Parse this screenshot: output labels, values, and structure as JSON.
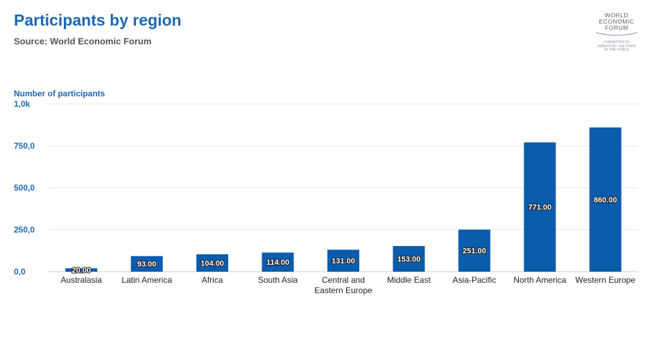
{
  "header": {
    "title": "Participants by region",
    "subtitle": "Source: World Economic Forum"
  },
  "logo": {
    "main_text": "WORLD\nECONOMIC\nFORUM",
    "tagline": "COMMITTED TO\nIMPROVING THE STATE\nOF THE WORLD"
  },
  "colors": {
    "bar": "#0a5cad",
    "title": "#1b67b3",
    "axis_text": "#1b67b3",
    "grid": "#e6e6e6"
  },
  "chart_data": {
    "type": "bar",
    "title": "Participants by region",
    "subtitle": "Source: World Economic Forum",
    "ylabel": "Number of participants",
    "xlabel": "",
    "ylim": [
      0,
      1000
    ],
    "yticks": [
      0,
      250,
      500,
      750,
      1000
    ],
    "ytick_labels": [
      "0,0",
      "250,0",
      "500,0",
      "750,0",
      "1,0k"
    ],
    "grid": true,
    "categories": [
      "Australasia",
      "Latin America",
      "Africa",
      "South Asia",
      "Central and Eastern Europe",
      "Middle East",
      "Asia-Pacific",
      "North America",
      "Western Europe"
    ],
    "category_label_lines": [
      [
        "Australasia"
      ],
      [
        "Latin America"
      ],
      [
        "Africa"
      ],
      [
        "South Asia"
      ],
      [
        "Central and",
        "Eastern Europe"
      ],
      [
        "Middle East"
      ],
      [
        "Asia-Pacific"
      ],
      [
        "North America"
      ],
      [
        "Western Europe"
      ]
    ],
    "values": [
      20,
      93,
      104,
      114,
      131,
      153,
      251,
      771,
      860
    ],
    "value_labels": [
      "20.00",
      "93.00",
      "104.00",
      "114.00",
      "131.00",
      "153.00",
      "251.00",
      "771.00",
      "860.00"
    ]
  }
}
